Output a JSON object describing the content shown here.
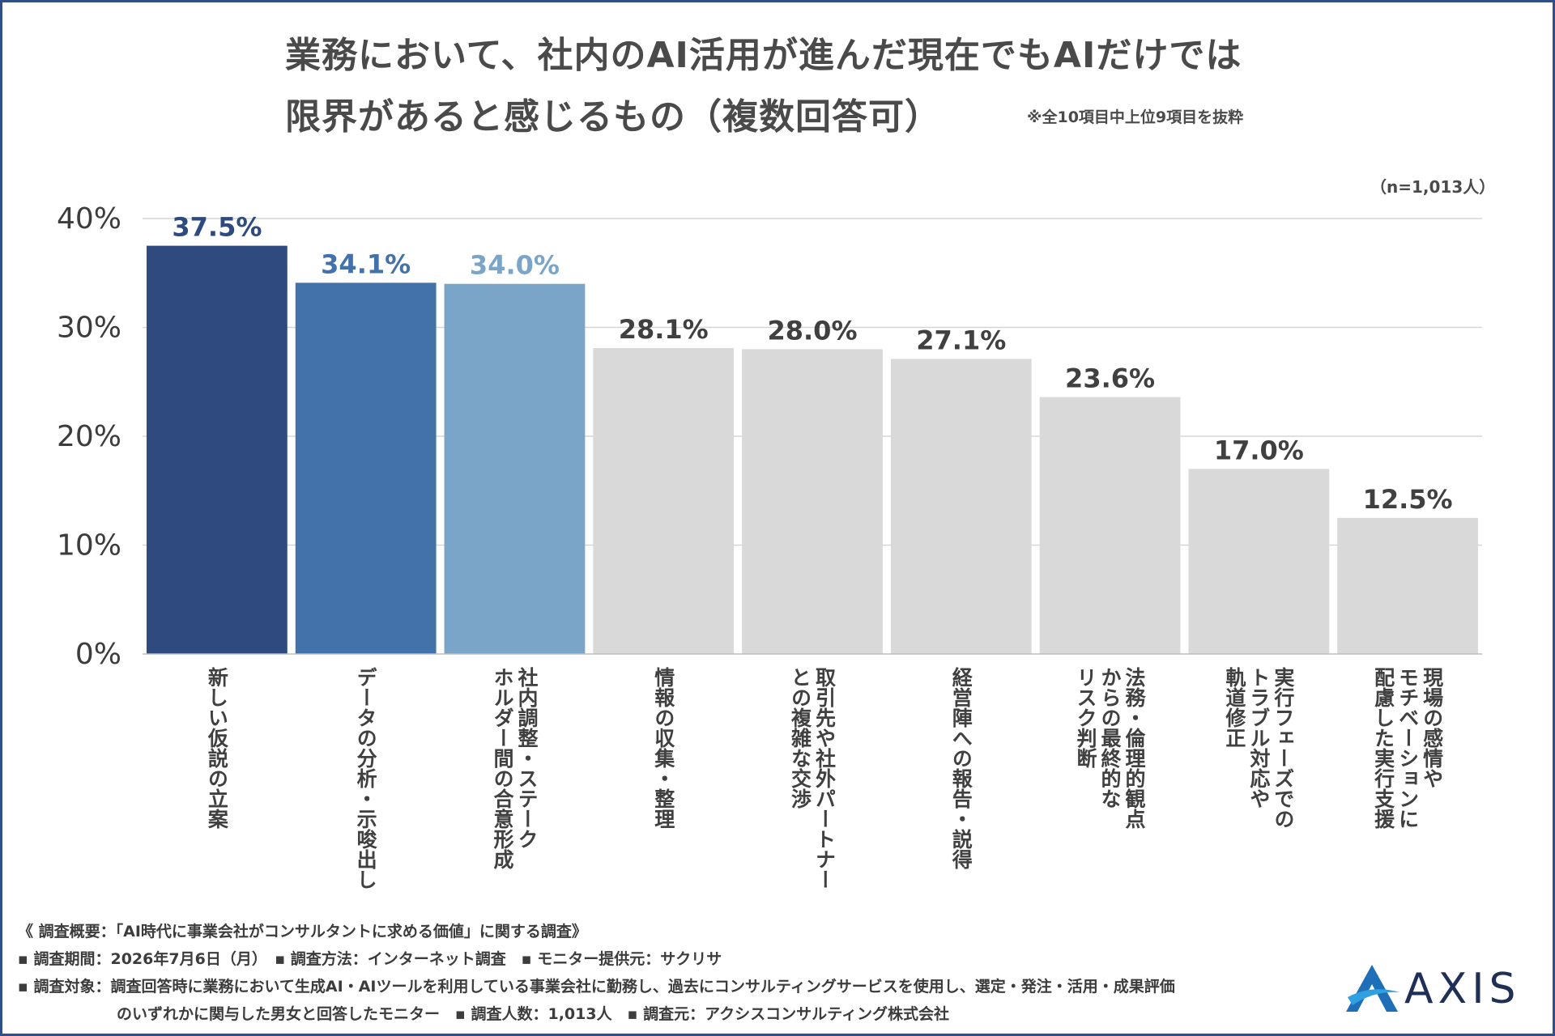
{
  "title_line1": "業務において、社内のAI活用が進んだ現在でもAIだけでは",
  "title_line2": "限界があると感じるもの（複数回答可）",
  "note": "※全10項目中上位9項目を抜粋",
  "sample": "（n=1,013人）",
  "colors": {
    "bar_top1": "#2e4a7e",
    "bar_top2": "#4372aa",
    "bar_top3": "#7aa5c9",
    "bar_other": "#d9d9d9",
    "label_other": "#404040",
    "grid": "#d6d6d6",
    "frame": "#2f4f86"
  },
  "chart_data": {
    "type": "bar",
    "ylim": [
      0,
      40
    ],
    "yticks": [
      "0%",
      "10%",
      "20%",
      "30%",
      "40%"
    ],
    "ytick_values": [
      0,
      10,
      20,
      30,
      40
    ],
    "categories": [
      "新しい仮説の立案",
      "データの分析・示唆出し",
      "社内調整・ステークホルダー間の合意形成",
      "情報の収集・整理",
      "取引先や社外パートナーとの複雑な交渉",
      "経営陣への報告・説得",
      "法務・倫理的観点からの最終的なリスク判断",
      "実行フェーズでのトラブル対応や軌道修正",
      "現場の感情やモチベーションに配慮した実行支援"
    ],
    "category_lines": [
      [
        "新しい仮説の立案"
      ],
      [
        "データの分析・示唆出し"
      ],
      [
        "社内調整・ステーク",
        "ホルダー間の合意形成"
      ],
      [
        "情報の収集・整理"
      ],
      [
        "取引先や社外パートナー",
        "との複雑な交渉"
      ],
      [
        "経営陣への報告・説得"
      ],
      [
        "法務・倫理的観点",
        "からの最終的な",
        "リスク判断"
      ],
      [
        "実行フェーズでの",
        "トラブル対応や",
        "軌道修正"
      ],
      [
        "現場の感情や",
        "モチベーションに",
        "配慮した実行支援"
      ]
    ],
    "values": [
      37.5,
      34.1,
      34.0,
      28.1,
      28.0,
      27.1,
      23.6,
      17.0,
      12.5
    ],
    "value_labels": [
      "37.5%",
      "34.1%",
      "34.0%",
      "28.1%",
      "28.0%",
      "27.1%",
      "23.6%",
      "17.0%",
      "12.5%"
    ]
  },
  "footer": {
    "line1": "《 調査概要：「AI時代に事業会社がコンサルタントに求める価値」に関する調査》",
    "line2": "▪ 調査期間：2026年7月6日（月）　▪ 調査方法：インターネット調査　▪ モニター提供元：サクリサ",
    "line3": "▪ 調査対象：調査回答時に業務において生成AI・AIツールを利用している事業会社に勤務し、過去にコンサルティングサービスを使用し、選定・発注・活用・成果評価",
    "line4": "のいずれかに関与した男女と回答したモニター　▪ 調査人数：1,013人　▪ 調査元：アクシスコンサルティング株式会社"
  },
  "logo": {
    "text": "AXIS",
    "icon": "axis-logo-icon"
  }
}
